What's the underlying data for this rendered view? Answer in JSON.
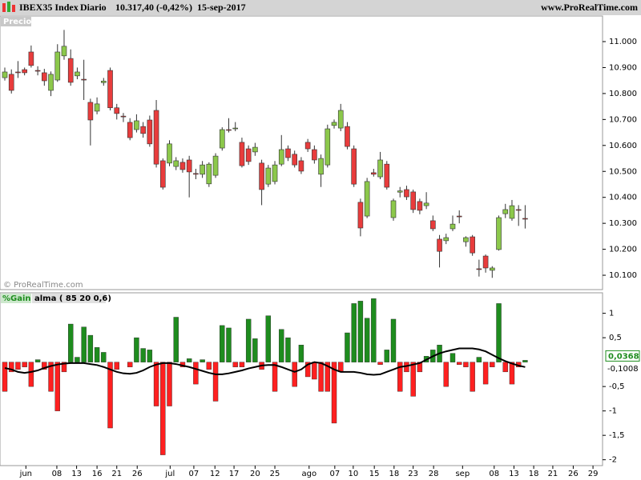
{
  "chart_data": [
    {
      "type": "candlestick",
      "title": "IBEX35 Index",
      "period": "Diario",
      "last_label": "10.317,40 (-0,42%)",
      "date": "15-sep-2017",
      "source": "www.ProRealTime.com",
      "panel_label": "Precio",
      "watermark": "© ProRealTime.com",
      "up_color": "#8cc84b",
      "down_color": "#e83c3c",
      "open": [
        10861,
        10874,
        10883,
        10892,
        10960,
        10889,
        10880,
        10812,
        10852,
        10945,
        10935,
        10868,
        10855,
        10766,
        10732,
        10842,
        10889,
        10745,
        10713,
        10689,
        10661,
        10673,
        10698,
        10735,
        10541,
        10532,
        10519,
        10535,
        10544,
        10492,
        10489,
        10452,
        10485,
        10590,
        10661,
        10664,
        10612,
        10587,
        10575,
        10532,
        10451,
        10461,
        10528,
        10587,
        10566,
        10541,
        10612,
        10584,
        10489,
        10525,
        10677,
        10667,
        10673,
        10587,
        10381,
        10328,
        10495,
        10479,
        10528,
        10322,
        10420,
        10430,
        10421,
        10384,
        10368,
        10310,
        10239,
        10233,
        10279,
        10328,
        10229,
        10248,
        10125,
        10174,
        10119,
        10199,
        10337,
        10319,
        10353,
        10319
      ],
      "close": [
        10883,
        10812,
        10880,
        10880,
        10908,
        10886,
        10849,
        10874,
        10960,
        10982,
        10843,
        10883,
        10852,
        10698,
        10760,
        10848,
        10745,
        10723,
        10710,
        10630,
        10695,
        10646,
        10606,
        10528,
        10439,
        10606,
        10541,
        10507,
        10498,
        10490,
        10525,
        10528,
        10559,
        10661,
        10659,
        10667,
        10522,
        10538,
        10593,
        10430,
        10513,
        10525,
        10584,
        10553,
        10525,
        10501,
        10587,
        10544,
        10550,
        10664,
        10689,
        10735,
        10596,
        10451,
        10282,
        10461,
        10489,
        10544,
        10439,
        10387,
        10425,
        10402,
        10353,
        10350,
        10378,
        10279,
        10192,
        10245,
        10297,
        10325,
        10245,
        10186,
        10122,
        10128,
        10128,
        10322,
        10353,
        10368,
        10350,
        10317
      ],
      "high": [
        10900,
        10893,
        10925,
        10900,
        10985,
        10905,
        10895,
        10885,
        10990,
        11045,
        10970,
        10900,
        10930,
        10780,
        10785,
        10860,
        10900,
        10760,
        10725,
        10705,
        10720,
        10690,
        10715,
        10775,
        10550,
        10620,
        10555,
        10550,
        10560,
        10510,
        10540,
        10535,
        10570,
        10670,
        10705,
        10690,
        10630,
        10600,
        10610,
        10545,
        10525,
        10540,
        10640,
        10600,
        10580,
        10555,
        10625,
        10600,
        10565,
        10680,
        10700,
        10760,
        10690,
        10600,
        10395,
        10475,
        10510,
        10575,
        10540,
        10395,
        10440,
        10445,
        10430,
        10395,
        10420,
        10330,
        10255,
        10260,
        10330,
        10350,
        10250,
        10255,
        10160,
        10180,
        10135,
        10330,
        10375,
        10390,
        10370,
        10370
      ],
      "low": [
        10850,
        10800,
        10860,
        10870,
        10900,
        10870,
        10830,
        10790,
        10845,
        10930,
        10830,
        10855,
        10775,
        10600,
        10720,
        10830,
        10735,
        10700,
        10690,
        10620,
        10650,
        10630,
        10595,
        10515,
        10430,
        10520,
        10505,
        10495,
        10400,
        10470,
        10475,
        10440,
        10475,
        10580,
        10650,
        10655,
        10515,
        10525,
        10560,
        10370,
        10440,
        10450,
        10520,
        10540,
        10515,
        10490,
        10575,
        10530,
        10440,
        10515,
        10665,
        10655,
        10585,
        10440,
        10250,
        10320,
        10480,
        10470,
        10430,
        10310,
        10400,
        10390,
        10340,
        10335,
        10355,
        10270,
        10130,
        10220,
        10270,
        10300,
        10210,
        10175,
        10095,
        10110,
        10090,
        10195,
        10320,
        10310,
        10290,
        10280
      ],
      "ylim": [
        10044.7,
        11098.6
      ],
      "yticks": [
        {
          "value": 11000,
          "label": "11.000"
        },
        {
          "value": 10900,
          "label": "10.900"
        },
        {
          "value": 10800,
          "label": "10.800"
        },
        {
          "value": 10700,
          "label": "10.700"
        },
        {
          "value": 10600,
          "label": "10.600"
        },
        {
          "value": 10500,
          "label": "10.500"
        },
        {
          "value": 10400,
          "label": "10.400"
        },
        {
          "value": 10300,
          "label": "10.300"
        },
        {
          "value": 10200,
          "label": "10.200"
        },
        {
          "value": 10100,
          "label": "10.100"
        }
      ]
    },
    {
      "type": "bar",
      "series": [
        {
          "name": "%Gain",
          "up_color": "#1e8c1e",
          "down_color": "#ff2020",
          "last_value_label": "0,0368",
          "values": [
            -0.6,
            -0.2,
            -0.15,
            -0.1,
            -0.5,
            0.05,
            -0.15,
            -0.6,
            -1.0,
            -0.2,
            0.78,
            0.1,
            0.72,
            0.55,
            0.3,
            0.2,
            -1.35,
            -0.15,
            0,
            -0.1,
            0.5,
            0.28,
            0.25,
            -0.9,
            -1.9,
            -0.9,
            0.92,
            -0.1,
            0.07,
            -0.45,
            0.05,
            -0.15,
            -0.8,
            0.75,
            0.7,
            -0.1,
            -0.1,
            0.88,
            0.48,
            -0.15,
            0.95,
            -0.6,
            0.67,
            0.5,
            -0.5,
            0.35,
            -0.3,
            -0.35,
            -0.6,
            -0.6,
            -1.25,
            -0.2,
            0.6,
            1.2,
            1.25,
            0.9,
            1.3,
            -0.05,
            0.25,
            0.88,
            -0.6,
            -0.2,
            -0.7,
            -0.2,
            0.12,
            0.25,
            0.35,
            -0.5,
            0.18,
            -0.05,
            -0.1,
            -0.6,
            0.1,
            -0.45,
            -0.1,
            1.2,
            -0.2,
            -0.45,
            -0.1,
            0.0368
          ]
        },
        {
          "name": "alma ( 85 20 0,6)",
          "type": "line",
          "color": "#000000",
          "last_value_label": "-0,1008",
          "values": [
            -0.12,
            -0.15,
            -0.2,
            -0.22,
            -0.2,
            -0.17,
            -0.12,
            -0.08,
            -0.05,
            -0.03,
            -0.02,
            -0.02,
            -0.02,
            -0.04,
            -0.06,
            -0.1,
            -0.15,
            -0.2,
            -0.23,
            -0.24,
            -0.22,
            -0.17,
            -0.1,
            -0.05,
            -0.02,
            -0.02,
            -0.04,
            -0.07,
            -0.1,
            -0.14,
            -0.18,
            -0.22,
            -0.25,
            -0.25,
            -0.23,
            -0.2,
            -0.17,
            -0.13,
            -0.1,
            -0.07,
            -0.06,
            -0.06,
            -0.1,
            -0.15,
            -0.2,
            -0.15,
            -0.05,
            0,
            -0.02,
            -0.08,
            -0.15,
            -0.2,
            -0.2,
            -0.2,
            -0.22,
            -0.25,
            -0.26,
            -0.25,
            -0.2,
            -0.15,
            -0.1,
            -0.08,
            -0.05,
            -0.02,
            0.05,
            0.12,
            0.18,
            0.22,
            0.25,
            0.28,
            0.28,
            0.28,
            0.26,
            0.22,
            0.15,
            0.08,
            0.02,
            -0.03,
            -0.07,
            -0.1008
          ]
        }
      ],
      "ylim": [
        -2.12,
        1.42
      ],
      "yticks": [
        1,
        {
          "value": 0.5,
          "label": "0,5"
        },
        {
          "value": -0.5,
          "label": "-0,5"
        },
        -1,
        {
          "value": -1.5,
          "label": "-1,5"
        },
        -2
      ],
      "xlim": [
        -0.73,
        90.75
      ],
      "xticks": [
        {
          "value": 3.2,
          "label": "jun"
        },
        {
          "value": 7.9,
          "label": "08"
        },
        {
          "value": 10.9,
          "label": "13"
        },
        {
          "value": 14.0,
          "label": "16"
        },
        {
          "value": 17.0,
          "label": "21"
        },
        {
          "value": 20.1,
          "label": "26"
        },
        {
          "value": 25.1,
          "label": "jul"
        },
        {
          "value": 28.7,
          "label": "07"
        },
        {
          "value": 31.9,
          "label": "12"
        },
        {
          "value": 34.8,
          "label": "17"
        },
        {
          "value": 38.0,
          "label": "20"
        },
        {
          "value": 41.0,
          "label": "25"
        },
        {
          "value": 46.2,
          "label": "ago"
        },
        {
          "value": 50.1,
          "label": "07"
        },
        {
          "value": 52.9,
          "label": "10"
        },
        {
          "value": 56.1,
          "label": "15"
        },
        {
          "value": 59.1,
          "label": "18"
        },
        {
          "value": 62.0,
          "label": "23"
        },
        {
          "value": 65.1,
          "label": "28"
        },
        {
          "value": 69.5,
          "label": "sep"
        },
        {
          "value": 74.3,
          "label": "08"
        },
        {
          "value": 77.3,
          "label": "13"
        },
        {
          "value": 80.3,
          "label": "18"
        },
        {
          "value": 83.2,
          "label": "21"
        },
        {
          "value": 86.3,
          "label": "26"
        },
        {
          "value": 89.3,
          "label": "29"
        }
      ]
    }
  ]
}
